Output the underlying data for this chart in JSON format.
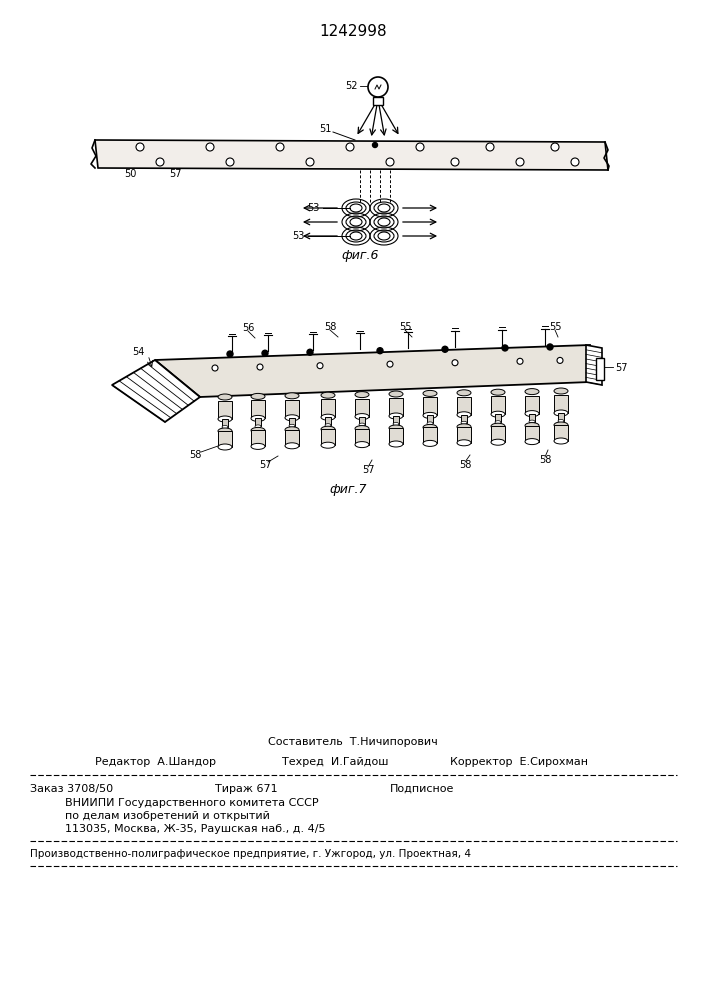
{
  "patent_number": "1242998",
  "bg_color": "#ffffff",
  "footer_sestavitel": "Составитель  Т.Ничипорович",
  "footer_redaktor": "Редактор  А.Шандор",
  "footer_tehred": "Техред  И.Гайдош",
  "footer_korrektor": "Корректор  Е.Сирохман",
  "footer_zakaz": "Заказ 3708/50",
  "footer_tirazh": "Тираж 671",
  "footer_podpisnoe": "Подписное",
  "footer_vniiipi": "ВНИИПИ Государственного комитета СССР",
  "footer_po_delam": "по делам изобретений и открытий",
  "footer_address": "113035, Москва, Ж-35, Раушская наб., д. 4/5",
  "footer_predpriyatie": "Производственно-полиграфическое предприятие, г. Ужгород, ул. Проектная, 4",
  "fig6_label": "фиг.6",
  "fig7_label": "фиг.7"
}
